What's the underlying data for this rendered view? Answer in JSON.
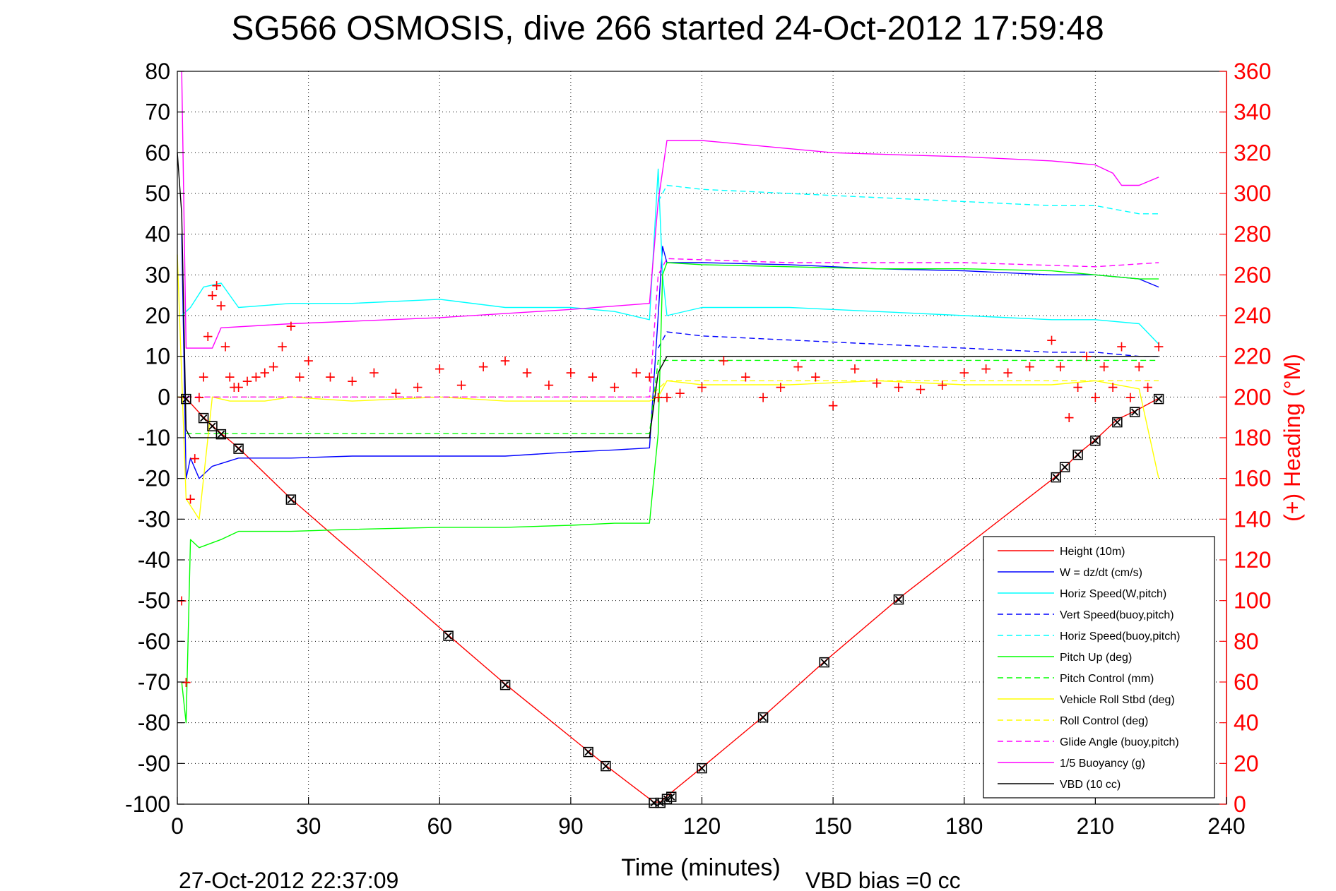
{
  "chart_data": {
    "type": "line",
    "title": "SG566 OSMOSIS, dive 266 started 24-Oct-2012 17:59:48",
    "xlabel": "Time (minutes)",
    "ylabel": "",
    "y2label": "(+) Heading (°M)",
    "footer_left": "27-Oct-2012 22:37:09",
    "footer_right": "VBD bias =0 cc",
    "xlim": [
      0,
      240
    ],
    "ylim": [
      -100,
      80
    ],
    "y2lim": [
      0,
      360
    ],
    "xticks": [
      0,
      30,
      60,
      90,
      120,
      150,
      180,
      210,
      240
    ],
    "yticks": [
      80,
      70,
      60,
      50,
      40,
      30,
      20,
      10,
      0,
      -10,
      -20,
      -30,
      -40,
      -50,
      -60,
      -70,
      -80,
      -90,
      -100
    ],
    "y2ticks": [
      360,
      340,
      320,
      300,
      280,
      260,
      240,
      220,
      200,
      180,
      160,
      140,
      120,
      100,
      80,
      60,
      40,
      20,
      0
    ],
    "grid": true,
    "legend_position": "lower-right",
    "series": [
      {
        "name": "Height (10m)",
        "color": "#ff0000",
        "style": "solid",
        "x": [
          0,
          2,
          6,
          9,
          14,
          26,
          62,
          75,
          94,
          98,
          109,
          110.5,
          112,
          120,
          134,
          148,
          165,
          201,
          206,
          210,
          215,
          219,
          224.5
        ],
        "y": [
          0,
          -0.3,
          -5,
          -8,
          -12.5,
          -25,
          -58.5,
          -70.5,
          -87,
          -90.5,
          -99.5,
          -99.5,
          -98,
          -91,
          -78.5,
          -65,
          -49.5,
          -19.5,
          -14,
          -10.5,
          -5.5,
          -3.5,
          -0.3
        ]
      },
      {
        "name": "W = dz/dt (cm/s)",
        "color": "#0000ff",
        "style": "solid",
        "x": [
          1,
          2,
          3,
          5,
          8,
          14,
          26,
          40,
          60,
          75,
          90,
          100,
          108,
          110,
          111,
          112,
          120,
          140,
          160,
          180,
          200,
          210,
          220,
          224.5
        ],
        "y": [
          40,
          -20,
          -15,
          -20,
          -17,
          -15,
          -15,
          -14.5,
          -14.5,
          -14.5,
          -13.5,
          -13,
          -12.5,
          20,
          37,
          33,
          33,
          32.5,
          31.5,
          31,
          30,
          30,
          29,
          27
        ]
      },
      {
        "name": "Horiz Speed(W,pitch)",
        "color": "#00ffff",
        "style": "solid",
        "x": [
          1,
          3,
          6,
          10,
          14,
          26,
          40,
          60,
          75,
          90,
          100,
          108,
          110,
          111,
          112,
          120,
          140,
          160,
          180,
          200,
          210,
          220,
          224.5
        ],
        "y": [
          20,
          22,
          27,
          28,
          22,
          23,
          23,
          24,
          22,
          22,
          21,
          19,
          56,
          30,
          20,
          22,
          22,
          21,
          20,
          19,
          19,
          18,
          13
        ]
      },
      {
        "name": "Vert Speed(buoy,pitch)",
        "color": "#0000ff",
        "style": "dashed",
        "x": [
          110,
          112,
          120,
          140,
          160,
          180,
          200,
          210,
          220,
          224.5
        ],
        "y": [
          12,
          16,
          15,
          14,
          13,
          12,
          11,
          11,
          10,
          10
        ]
      },
      {
        "name": "Horiz Speed(buoy,pitch)",
        "color": "#00ffff",
        "style": "dashed",
        "x": [
          110,
          112,
          120,
          140,
          160,
          180,
          200,
          210,
          215,
          220,
          224.5
        ],
        "y": [
          48,
          52,
          51,
          50,
          49,
          48,
          47,
          47,
          46,
          45,
          45
        ]
      },
      {
        "name": "Pitch Up (deg)",
        "color": "#00ff00",
        "style": "solid",
        "x": [
          1,
          2,
          3,
          5,
          10,
          14,
          26,
          40,
          60,
          75,
          90,
          100,
          108,
          109,
          110,
          111,
          112,
          120,
          140,
          160,
          180,
          200,
          210,
          220,
          224.5
        ],
        "y": [
          -70,
          -80,
          -35,
          -37,
          -35,
          -33,
          -33,
          -32.5,
          -32,
          -32,
          -31.5,
          -31,
          -31,
          -20,
          -9,
          30,
          33,
          32.5,
          32,
          31.5,
          31.5,
          31,
          30,
          29,
          29
        ]
      },
      {
        "name": "Pitch Control (mm)",
        "color": "#00ff00",
        "style": "dashed",
        "x": [
          2,
          108,
          110,
          224.5
        ],
        "y": [
          -9,
          -9,
          9,
          9
        ]
      },
      {
        "name": "Vehicle Roll Stbd (deg)",
        "color": "#ffff00",
        "style": "solid",
        "x": [
          0,
          2,
          5,
          8,
          12,
          20,
          26,
          40,
          60,
          75,
          90,
          108,
          110,
          112,
          120,
          140,
          160,
          180,
          200,
          210,
          220,
          224.5
        ],
        "y": [
          35,
          -25,
          -30,
          0,
          -1,
          -1,
          0,
          -1,
          0,
          -1,
          -1,
          -1,
          0,
          4,
          3,
          3,
          4,
          3,
          3,
          4,
          2,
          -20
        ]
      },
      {
        "name": "Roll Control (deg)",
        "color": "#ffff00",
        "style": "dashed",
        "x": [
          0,
          5,
          10,
          26,
          60,
          108,
          112,
          150,
          200,
          224.5
        ],
        "y": [
          0,
          0,
          0,
          0,
          0,
          0,
          4,
          4,
          4,
          4
        ]
      },
      {
        "name": "Glide Angle (buoy,pitch)",
        "color": "#ff00ff",
        "style": "dashed",
        "x": [
          2,
          108,
          110,
          112,
          140,
          180,
          210,
          224.5
        ],
        "y": [
          0,
          0,
          30,
          34,
          33,
          33,
          32,
          33
        ]
      },
      {
        "name": "1/5 Buoyancy (g)",
        "color": "#ff00ff",
        "style": "solid",
        "x": [
          1,
          2,
          5,
          8,
          10,
          26,
          60,
          90,
          108,
          110,
          112,
          120,
          150,
          180,
          200,
          210,
          214,
          216,
          220,
          224.5
        ],
        "y": [
          80,
          12,
          12,
          12,
          17,
          18,
          19.5,
          21.5,
          23,
          48,
          63,
          63,
          60,
          59,
          58,
          57,
          55,
          52,
          52,
          54
        ]
      },
      {
        "name": "VBD (10 cc)",
        "color": "#000000",
        "style": "solid",
        "x": [
          0,
          1,
          2,
          3,
          108,
          110,
          112,
          224.5
        ],
        "y": [
          60,
          45,
          -8,
          -10,
          -10,
          6,
          10,
          10
        ]
      }
    ],
    "heading": {
      "name": "Heading",
      "color": "#ff0000",
      "marker": "+",
      "axis": "right",
      "x": [
        1,
        2,
        3,
        4,
        5,
        6,
        7,
        8,
        9,
        10,
        11,
        12,
        13,
        14,
        16,
        18,
        20,
        22,
        24,
        26,
        28,
        30,
        35,
        40,
        45,
        50,
        55,
        60,
        65,
        70,
        75,
        80,
        85,
        90,
        95,
        100,
        105,
        108,
        110,
        112,
        115,
        120,
        125,
        130,
        134,
        138,
        142,
        146,
        150,
        155,
        160,
        165,
        170,
        175,
        180,
        185,
        190,
        195,
        200,
        202,
        204,
        206,
        208,
        210,
        212,
        214,
        216,
        218,
        220,
        222,
        224.5
      ],
      "y": [
        100,
        60,
        150,
        170,
        200,
        210,
        230,
        250,
        255,
        245,
        225,
        210,
        205,
        205,
        208,
        210,
        212,
        215,
        225,
        235,
        210,
        218,
        210,
        208,
        212,
        202,
        205,
        214,
        206,
        215,
        218,
        212,
        206,
        212,
        210,
        205,
        212,
        210,
        200,
        200,
        202,
        205,
        218,
        210,
        200,
        205,
        215,
        210,
        196,
        214,
        207,
        205,
        204,
        206,
        212,
        214,
        212,
        215,
        228,
        215,
        190,
        205,
        220,
        200,
        215,
        205,
        225,
        200,
        215,
        205,
        225
      ]
    },
    "vbd_markers": {
      "marker": "⊠",
      "x": [
        2,
        6,
        8,
        10,
        14,
        26,
        62,
        75,
        94,
        98,
        109,
        110.5,
        112,
        113,
        120,
        134,
        148,
        165,
        201,
        203,
        206,
        210,
        215,
        219,
        224.5
      ],
      "y": [
        -0.3,
        -5,
        -7,
        -9,
        -12.5,
        -25,
        -58.5,
        -70.5,
        -87,
        -90.5,
        -99.5,
        -99.5,
        -98.5,
        -98,
        -91,
        -78.5,
        -65,
        -49.5,
        -19.5,
        -17,
        -14,
        -10.5,
        -6,
        -3.5,
        -0.3
      ]
    }
  }
}
